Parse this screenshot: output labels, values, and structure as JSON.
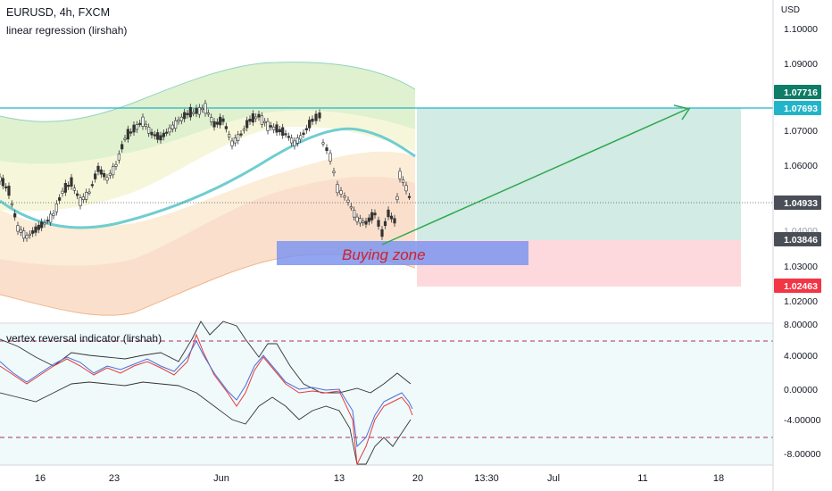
{
  "header": {
    "symbol_line": "EURUSD, 4h, FXCM",
    "indicator_line": "linear regression  (lirshah)"
  },
  "price_axis": {
    "currency": "USD",
    "ticks": [
      "1.10000",
      "1.09000",
      "1.07000",
      "1.06000",
      "1.03000",
      "1.02000"
    ],
    "partial_tick": "1.04000",
    "markers": [
      {
        "label": "1.07716",
        "color": "#0e7c66",
        "role": "last-price"
      },
      {
        "label": "1.07693",
        "color": "#22b5c9",
        "role": "take-profit"
      },
      {
        "label": "1.04933",
        "color": "#4a4e57",
        "role": "current-price"
      },
      {
        "label": "1.03846",
        "color": "#4a4e57",
        "role": "entry"
      },
      {
        "label": "1.02463",
        "color": "#f23645",
        "role": "stop-loss"
      }
    ]
  },
  "annotation": {
    "buying_zone_label": "Buying zone"
  },
  "sub_pane": {
    "title": "vertex reversal indicator (lirshah)",
    "ticks": [
      "8.00000",
      "4.00000",
      "0.00000",
      "-4.00000",
      "-8.00000"
    ]
  },
  "time_axis": {
    "labels": [
      "16",
      "23",
      "Jun",
      "13",
      "20",
      "13:30",
      "Jul",
      "11",
      "18"
    ]
  },
  "colors": {
    "horizontal_line": "#22b5c9",
    "target_zone": "#cde9e1",
    "stop_zone": "#fdd5d9",
    "buy_zone": "#7e95ee",
    "trend_arrow": "#2fa84f",
    "regression_mid": "#6fcdd0",
    "band_upper": "#d7ebc1",
    "band_lower": "#f9dcc2",
    "sub_pane_bg": "#f0fafb",
    "dashed_levels": "#b3276a"
  }
}
